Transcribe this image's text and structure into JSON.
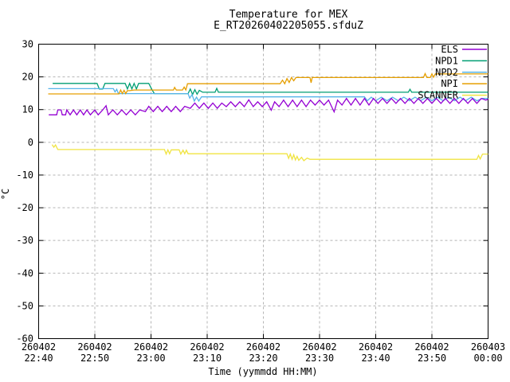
{
  "chart_data": {
    "type": "line",
    "title": "Temperature for MEX",
    "subtitle": "E_RT20260402205055.sfduZ",
    "xlabel": "Time (yymmdd HH:MM)",
    "ylabel": "°C",
    "ylim": [
      -60,
      30
    ],
    "ytick_interval": 10,
    "yticks": [
      30,
      20,
      10,
      0,
      -10,
      -20,
      -30,
      -40,
      -50,
      -60
    ],
    "x_minutes_range": [
      0,
      80
    ],
    "xticks": [
      {
        "minutes": 0,
        "date": "260402",
        "time": "22:40"
      },
      {
        "minutes": 10,
        "date": "260402",
        "time": "22:50"
      },
      {
        "minutes": 20,
        "date": "260402",
        "time": "23:00"
      },
      {
        "minutes": 30,
        "date": "260402",
        "time": "23:10"
      },
      {
        "minutes": 40,
        "date": "260402",
        "time": "23:20"
      },
      {
        "minutes": 50,
        "date": "260402",
        "time": "23:30"
      },
      {
        "minutes": 60,
        "date": "260402",
        "time": "23:40"
      },
      {
        "minutes": 70,
        "date": "260402",
        "time": "23:50"
      },
      {
        "minutes": 80,
        "date": "260403",
        "time": "00:00"
      }
    ],
    "grid": true,
    "legend_position": "top-right",
    "grid_color": "#b5b5b5",
    "axis_color": "#000000",
    "series": [
      {
        "name": "ELS",
        "color": "#9400D3",
        "points": [
          [
            1.8,
            8.4
          ],
          [
            3.2,
            8.4
          ],
          [
            3.4,
            9.9
          ],
          [
            4.0,
            9.9
          ],
          [
            4.2,
            8.4
          ],
          [
            4.8,
            8.4
          ],
          [
            5.0,
            9.9
          ],
          [
            5.6,
            8.4
          ],
          [
            6.2,
            9.9
          ],
          [
            6.8,
            8.4
          ],
          [
            7.4,
            9.9
          ],
          [
            8.0,
            8.4
          ],
          [
            8.6,
            9.9
          ],
          [
            9.2,
            8.4
          ],
          [
            10.0,
            9.9
          ],
          [
            10.6,
            8.4
          ],
          [
            11.4,
            9.9
          ],
          [
            12.0,
            11.2
          ],
          [
            12.4,
            8.4
          ],
          [
            13.2,
            9.9
          ],
          [
            14.0,
            8.4
          ],
          [
            14.8,
            9.9
          ],
          [
            15.6,
            8.4
          ],
          [
            16.4,
            9.9
          ],
          [
            17.2,
            8.4
          ],
          [
            18.0,
            9.9
          ],
          [
            19.0,
            9.4
          ],
          [
            19.6,
            11.0
          ],
          [
            20.4,
            9.4
          ],
          [
            21.2,
            11.0
          ],
          [
            22.0,
            9.4
          ],
          [
            22.8,
            11.0
          ],
          [
            23.6,
            9.4
          ],
          [
            24.4,
            11.0
          ],
          [
            25.2,
            9.4
          ],
          [
            26.0,
            11.0
          ],
          [
            27.0,
            10.4
          ],
          [
            27.8,
            12.0
          ],
          [
            28.6,
            10.4
          ],
          [
            29.4,
            12.0
          ],
          [
            30.2,
            10.4
          ],
          [
            31.0,
            12.0
          ],
          [
            31.8,
            10.4
          ],
          [
            32.6,
            12.0
          ],
          [
            33.4,
            10.9
          ],
          [
            34.2,
            12.4
          ],
          [
            35.0,
            10.9
          ],
          [
            35.8,
            12.4
          ],
          [
            36.6,
            10.9
          ],
          [
            37.4,
            13.0
          ],
          [
            38.2,
            10.9
          ],
          [
            39.0,
            12.4
          ],
          [
            39.8,
            10.9
          ],
          [
            40.6,
            12.4
          ],
          [
            41.4,
            9.8
          ],
          [
            42.0,
            12.4
          ],
          [
            42.8,
            10.9
          ],
          [
            43.6,
            12.9
          ],
          [
            44.4,
            10.9
          ],
          [
            45.2,
            12.9
          ],
          [
            46.0,
            10.9
          ],
          [
            46.8,
            12.9
          ],
          [
            47.6,
            10.9
          ],
          [
            48.4,
            12.9
          ],
          [
            49.2,
            11.4
          ],
          [
            50.0,
            12.9
          ],
          [
            50.8,
            11.4
          ],
          [
            51.6,
            12.9
          ],
          [
            52.6,
            9.3
          ],
          [
            53.2,
            12.9
          ],
          [
            54.0,
            11.4
          ],
          [
            54.8,
            13.4
          ],
          [
            55.6,
            11.4
          ],
          [
            56.4,
            13.4
          ],
          [
            57.2,
            11.4
          ],
          [
            58.0,
            13.4
          ],
          [
            58.8,
            11.4
          ],
          [
            59.6,
            13.4
          ],
          [
            60.4,
            11.9
          ],
          [
            61.2,
            13.4
          ],
          [
            62.0,
            11.9
          ],
          [
            62.8,
            13.4
          ],
          [
            63.6,
            11.9
          ],
          [
            64.4,
            13.4
          ],
          [
            65.2,
            11.9
          ],
          [
            66.0,
            13.4
          ],
          [
            66.8,
            11.9
          ],
          [
            67.6,
            13.4
          ],
          [
            68.4,
            11.9
          ],
          [
            69.2,
            13.4
          ],
          [
            70.0,
            11.9
          ],
          [
            70.8,
            13.4
          ],
          [
            71.6,
            11.9
          ],
          [
            72.4,
            13.4
          ],
          [
            73.2,
            11.9
          ],
          [
            74.0,
            13.4
          ],
          [
            74.8,
            11.9
          ],
          [
            75.6,
            13.4
          ],
          [
            76.4,
            11.9
          ],
          [
            77.2,
            13.4
          ],
          [
            78.0,
            11.9
          ],
          [
            78.8,
            13.4
          ],
          [
            79.6,
            12.9
          ],
          [
            80,
            13.2
          ]
        ]
      },
      {
        "name": "NPD1",
        "color": "#009E73",
        "points": [
          [
            2.5,
            18.0
          ],
          [
            10.4,
            18.0
          ],
          [
            10.8,
            16.3
          ],
          [
            11.4,
            16.3
          ],
          [
            11.8,
            18.0
          ],
          [
            15.4,
            18.0
          ],
          [
            15.8,
            16.3
          ],
          [
            16.2,
            18.0
          ],
          [
            16.6,
            16.3
          ],
          [
            17.0,
            18.0
          ],
          [
            17.4,
            16.3
          ],
          [
            17.8,
            18.0
          ],
          [
            19.6,
            18.0
          ],
          [
            20.2,
            16.0
          ],
          [
            20.6,
            14.9
          ],
          [
            26.6,
            14.9
          ],
          [
            27.0,
            16.3
          ],
          [
            27.4,
            14.6
          ],
          [
            27.8,
            16.1
          ],
          [
            28.2,
            14.7
          ],
          [
            28.6,
            15.9
          ],
          [
            29.2,
            15.3
          ],
          [
            31.4,
            15.3
          ],
          [
            31.7,
            16.5
          ],
          [
            32.0,
            15.3
          ],
          [
            65.8,
            15.3
          ],
          [
            66.1,
            16.2
          ],
          [
            66.4,
            15.3
          ],
          [
            80,
            15.3
          ]
        ]
      },
      {
        "name": "NPD2",
        "color": "#56B4E9",
        "points": [
          [
            1.7,
            16.4
          ],
          [
            13.3,
            16.4
          ],
          [
            13.6,
            15.4
          ],
          [
            13.9,
            16.2
          ],
          [
            14.2,
            14.9
          ],
          [
            26.6,
            14.9
          ],
          [
            26.9,
            13.5
          ],
          [
            27.3,
            14.6
          ],
          [
            27.7,
            12.6
          ],
          [
            28.1,
            13.8
          ],
          [
            28.5,
            12.6
          ],
          [
            29.0,
            13.9
          ],
          [
            58.0,
            13.9
          ],
          [
            58.5,
            12.7
          ],
          [
            59.2,
            13.8
          ],
          [
            60.0,
            12.7
          ],
          [
            61.0,
            13.8
          ],
          [
            62.0,
            12.7
          ],
          [
            63.0,
            13.8
          ],
          [
            64.0,
            12.7
          ],
          [
            65.0,
            13.8
          ],
          [
            66.0,
            12.7
          ],
          [
            67.0,
            13.8
          ],
          [
            68.0,
            12.7
          ],
          [
            69.0,
            13.8
          ],
          [
            70.0,
            12.7
          ],
          [
            71.0,
            13.8
          ],
          [
            72.0,
            12.7
          ],
          [
            73.0,
            13.8
          ],
          [
            74.0,
            12.7
          ],
          [
            75.0,
            13.8
          ],
          [
            76.0,
            12.7
          ],
          [
            77.0,
            13.8
          ],
          [
            78.0,
            12.7
          ],
          [
            79.0,
            13.4
          ],
          [
            80,
            13.4
          ]
        ]
      },
      {
        "name": "NPI",
        "color": "#E69F00",
        "points": [
          [
            1.7,
            14.8
          ],
          [
            13.5,
            14.8
          ],
          [
            14.3,
            14.8
          ],
          [
            14.6,
            16.0
          ],
          [
            14.9,
            14.9
          ],
          [
            15.2,
            15.9
          ],
          [
            15.5,
            14.9
          ],
          [
            15.8,
            15.8
          ],
          [
            16.2,
            15.8
          ],
          [
            17.0,
            16.0
          ],
          [
            24.0,
            16.0
          ],
          [
            24.2,
            16.8
          ],
          [
            24.5,
            16.0
          ],
          [
            25.6,
            16.0
          ],
          [
            25.9,
            16.9
          ],
          [
            26.2,
            16.0
          ],
          [
            26.5,
            17.9
          ],
          [
            43.0,
            17.9
          ],
          [
            43.4,
            19.0
          ],
          [
            43.8,
            17.9
          ],
          [
            44.2,
            19.5
          ],
          [
            44.6,
            18.3
          ],
          [
            45.0,
            19.8
          ],
          [
            45.4,
            18.8
          ],
          [
            45.8,
            19.8
          ],
          [
            48.3,
            19.8
          ],
          [
            48.5,
            18.2
          ],
          [
            48.7,
            19.8
          ],
          [
            68.5,
            19.8
          ],
          [
            68.8,
            21.0
          ],
          [
            69.1,
            19.8
          ],
          [
            69.7,
            19.8
          ],
          [
            70.0,
            20.9
          ],
          [
            70.3,
            19.9
          ],
          [
            70.6,
            20.9
          ],
          [
            80,
            20.9
          ]
        ]
      },
      {
        "name": "SCANNER",
        "color": "#F0E442",
        "points": [
          [
            2.4,
            -0.7
          ],
          [
            2.7,
            -1.5
          ],
          [
            3.0,
            -0.8
          ],
          [
            3.4,
            -2.2
          ],
          [
            22.4,
            -2.2
          ],
          [
            22.7,
            -3.6
          ],
          [
            23.0,
            -2.3
          ],
          [
            23.3,
            -3.5
          ],
          [
            23.6,
            -2.3
          ],
          [
            25.0,
            -2.3
          ],
          [
            25.3,
            -3.6
          ],
          [
            25.7,
            -2.4
          ],
          [
            26.0,
            -3.5
          ],
          [
            26.3,
            -2.4
          ],
          [
            26.6,
            -3.5
          ],
          [
            44.2,
            -3.5
          ],
          [
            44.5,
            -4.9
          ],
          [
            44.8,
            -3.6
          ],
          [
            45.1,
            -5.2
          ],
          [
            45.4,
            -3.8
          ],
          [
            45.7,
            -5.4
          ],
          [
            46.0,
            -4.3
          ],
          [
            46.3,
            -5.5
          ],
          [
            46.8,
            -4.6
          ],
          [
            47.2,
            -5.6
          ],
          [
            47.8,
            -4.8
          ],
          [
            48.3,
            -5.2
          ],
          [
            78.0,
            -5.2
          ],
          [
            78.3,
            -4.0
          ],
          [
            78.6,
            -5.1
          ],
          [
            79.0,
            -3.6
          ],
          [
            80,
            -3.6
          ]
        ]
      }
    ]
  }
}
